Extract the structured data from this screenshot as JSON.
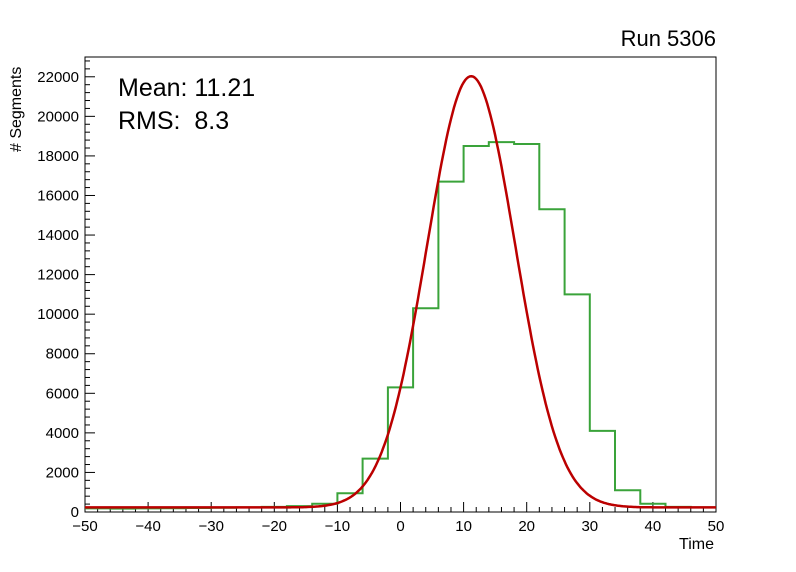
{
  "title": "Run 5306",
  "stats": {
    "mean_text": "Mean: 11.21",
    "rms_text": "RMS:  8.3"
  },
  "chart_data": {
    "type": "bar",
    "subtype": "step-histogram-with-gaussian-fit",
    "title": "Run 5306",
    "xlabel": "Time",
    "ylabel": "# Segments",
    "xlim": [
      -50,
      50
    ],
    "ylim": [
      0,
      23000
    ],
    "grid": false,
    "legend": "none",
    "x_major_ticks": [
      -50,
      -40,
      -30,
      -20,
      -10,
      0,
      10,
      20,
      30,
      40,
      50
    ],
    "x_minor_step": 2,
    "y_major_ticks": [
      0,
      2000,
      4000,
      6000,
      8000,
      10000,
      12000,
      14000,
      16000,
      18000,
      20000,
      22000
    ],
    "y_minor_step": 400,
    "stats": {
      "mean": 11.21,
      "rms": 8.3
    },
    "histogram": {
      "color": "#3aa33a",
      "bin_edges": [
        -50,
        -46,
        -42,
        -38,
        -34,
        -30,
        -26,
        -22,
        -18,
        -14,
        -10,
        -6,
        -2,
        2,
        6,
        10,
        14,
        18,
        22,
        26,
        30,
        34,
        38,
        42,
        46,
        50
      ],
      "counts": [
        180,
        170,
        180,
        190,
        200,
        210,
        230,
        260,
        300,
        420,
        950,
        2700,
        6300,
        10300,
        16700,
        18500,
        18700,
        18600,
        15300,
        11000,
        4100,
        1100,
        420,
        260,
        230
      ]
    },
    "fit": {
      "color": "#bb0000",
      "model": "constant + gaussian",
      "baseline": 230,
      "amplitude": 21800,
      "mean": 11.2,
      "sigma": 7.0
    }
  }
}
